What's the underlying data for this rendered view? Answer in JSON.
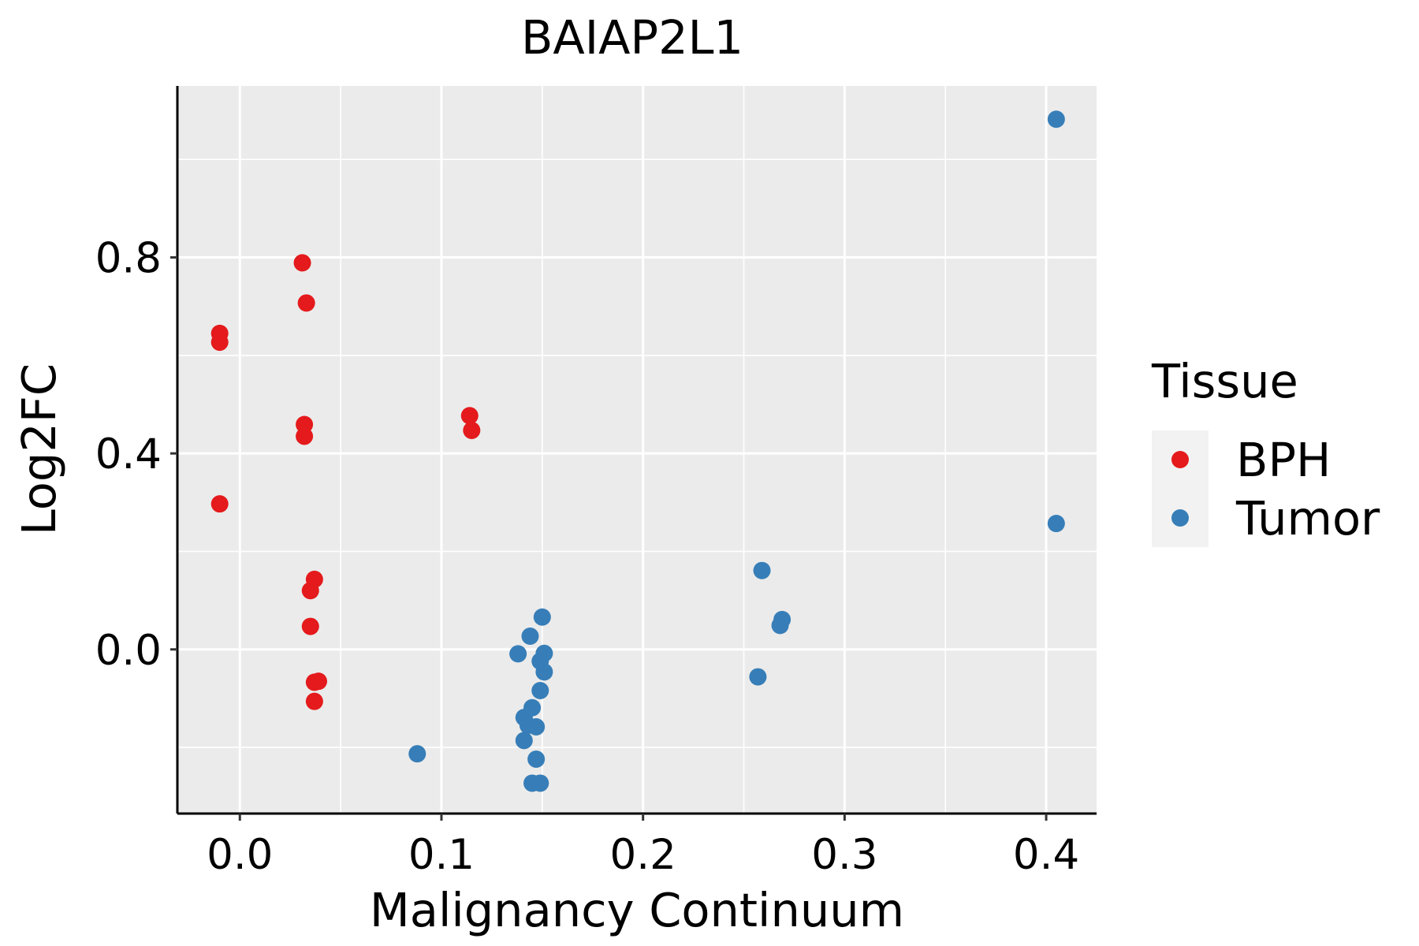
{
  "chart_data": {
    "type": "scatter",
    "title": "BAIAP2L1",
    "xlabel": "Malignancy Continuum",
    "ylabel": "Log2FC",
    "xlim": [
      -0.031,
      0.425
    ],
    "ylim": [
      -0.335,
      1.15
    ],
    "xticks": [
      0.0,
      0.1,
      0.2,
      0.3,
      0.4
    ],
    "xtick_labels": [
      "0.0",
      "0.1",
      "0.2",
      "0.3",
      "0.4"
    ],
    "yticks": [
      0.0,
      0.4,
      0.8
    ],
    "ytick_labels": [
      "0.0",
      "0.4",
      "0.8"
    ],
    "x_minor": [
      0.05,
      0.15,
      0.25,
      0.35
    ],
    "y_minor": [
      -0.2,
      0.2,
      0.6,
      1.0
    ],
    "grid": true,
    "legend": {
      "title": "Tissue",
      "position": "right"
    },
    "series": [
      {
        "name": "BPH",
        "color": "#E41A1C",
        "points": [
          {
            "x": -0.01,
            "y": 0.645
          },
          {
            "x": -0.01,
            "y": 0.627
          },
          {
            "x": -0.01,
            "y": 0.297
          },
          {
            "x": 0.031,
            "y": 0.789
          },
          {
            "x": 0.033,
            "y": 0.707
          },
          {
            "x": 0.032,
            "y": 0.459
          },
          {
            "x": 0.032,
            "y": 0.435
          },
          {
            "x": 0.114,
            "y": 0.477
          },
          {
            "x": 0.115,
            "y": 0.447
          },
          {
            "x": 0.037,
            "y": 0.143
          },
          {
            "x": 0.035,
            "y": 0.12
          },
          {
            "x": 0.035,
            "y": 0.047
          },
          {
            "x": 0.037,
            "y": -0.067
          },
          {
            "x": 0.039,
            "y": -0.065
          },
          {
            "x": 0.037,
            "y": -0.106
          }
        ]
      },
      {
        "name": "Tumor",
        "color": "#377EB8",
        "points": [
          {
            "x": 0.405,
            "y": 1.082
          },
          {
            "x": 0.405,
            "y": 0.257
          },
          {
            "x": 0.259,
            "y": 0.161
          },
          {
            "x": 0.269,
            "y": 0.061
          },
          {
            "x": 0.268,
            "y": 0.049
          },
          {
            "x": 0.257,
            "y": -0.056
          },
          {
            "x": 0.15,
            "y": 0.066
          },
          {
            "x": 0.144,
            "y": 0.027
          },
          {
            "x": 0.138,
            "y": -0.009
          },
          {
            "x": 0.151,
            "y": -0.008
          },
          {
            "x": 0.149,
            "y": -0.024
          },
          {
            "x": 0.151,
            "y": -0.046
          },
          {
            "x": 0.149,
            "y": -0.084
          },
          {
            "x": 0.145,
            "y": -0.119
          },
          {
            "x": 0.141,
            "y": -0.139
          },
          {
            "x": 0.143,
            "y": -0.155
          },
          {
            "x": 0.147,
            "y": -0.158
          },
          {
            "x": 0.141,
            "y": -0.186
          },
          {
            "x": 0.088,
            "y": -0.213
          },
          {
            "x": 0.147,
            "y": -0.224
          },
          {
            "x": 0.145,
            "y": -0.273
          },
          {
            "x": 0.149,
            "y": -0.273
          }
        ]
      }
    ]
  }
}
